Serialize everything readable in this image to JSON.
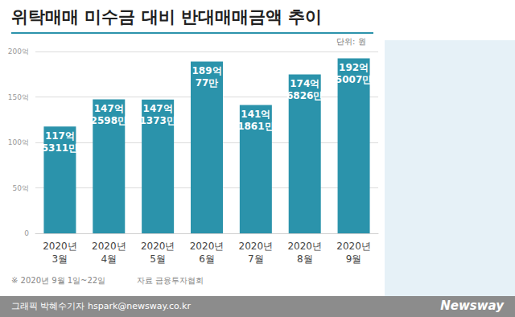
{
  "chart_data": {
    "type": "bar",
    "title": "위탁매매 미수금 대비 반대매매금액 추이",
    "unit": "단위: 원",
    "categories": [
      "2020년 3월",
      "2020년 4월",
      "2020년 5월",
      "2020년 6월",
      "2020년 7월",
      "2020년 8월",
      "2020년 9월"
    ],
    "values": [
      11753110000,
      14725980000,
      14713730000,
      18900770000,
      14118610000,
      17468260000,
      19250070000
    ],
    "value_labels": [
      "117억 5311만",
      "147억 2598만",
      "147억 1373만",
      "189억 77만",
      "141억 1861만",
      "174억 6826만",
      "192억 5007만"
    ],
    "color": "#2b93ab",
    "ylim": [
      0,
      20000000000
    ],
    "yticks": [
      0,
      {
        "value": 5000000000,
        "label": "50억"
      },
      {
        "value": 10000000000,
        "label": "100억"
      },
      {
        "value": 15000000000,
        "label": "150억"
      },
      {
        "value": 20000000000,
        "label": "200억"
      }
    ],
    "grid": true,
    "data_labels": true,
    "note": "※ 2020년 9월 1일~22일",
    "source": "자료 금융투자협회",
    "credit": "그래픽 박혜수기자 hspark@newsway.co.kr",
    "logo": "Newsway"
  }
}
